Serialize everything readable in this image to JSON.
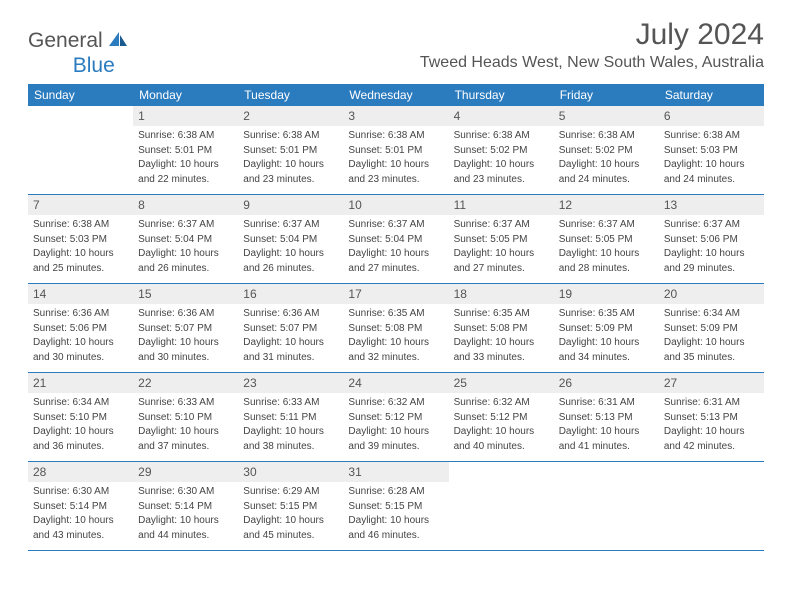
{
  "logo": {
    "text1": "General",
    "text2": "Blue"
  },
  "title": "July 2024",
  "location": "Tweed Heads West, New South Wales, Australia",
  "colors": {
    "header_bg": "#2b7bbf",
    "header_text": "#ffffff",
    "daynum_bg": "#eeeeee",
    "text": "#555555",
    "info_text": "#444444",
    "rule": "#2b7bbf"
  },
  "typography": {
    "title_fontsize": 30,
    "location_fontsize": 16,
    "dayheader_fontsize": 12,
    "daynum_fontsize": 12,
    "info_fontsize": 10
  },
  "dayNames": [
    "Sunday",
    "Monday",
    "Tuesday",
    "Wednesday",
    "Thursday",
    "Friday",
    "Saturday"
  ],
  "weeks": [
    [
      null,
      {
        "n": "1",
        "sr": "Sunrise: 6:38 AM",
        "ss": "Sunset: 5:01 PM",
        "d1": "Daylight: 10 hours",
        "d2": "and 22 minutes."
      },
      {
        "n": "2",
        "sr": "Sunrise: 6:38 AM",
        "ss": "Sunset: 5:01 PM",
        "d1": "Daylight: 10 hours",
        "d2": "and 23 minutes."
      },
      {
        "n": "3",
        "sr": "Sunrise: 6:38 AM",
        "ss": "Sunset: 5:01 PM",
        "d1": "Daylight: 10 hours",
        "d2": "and 23 minutes."
      },
      {
        "n": "4",
        "sr": "Sunrise: 6:38 AM",
        "ss": "Sunset: 5:02 PM",
        "d1": "Daylight: 10 hours",
        "d2": "and 23 minutes."
      },
      {
        "n": "5",
        "sr": "Sunrise: 6:38 AM",
        "ss": "Sunset: 5:02 PM",
        "d1": "Daylight: 10 hours",
        "d2": "and 24 minutes."
      },
      {
        "n": "6",
        "sr": "Sunrise: 6:38 AM",
        "ss": "Sunset: 5:03 PM",
        "d1": "Daylight: 10 hours",
        "d2": "and 24 minutes."
      }
    ],
    [
      {
        "n": "7",
        "sr": "Sunrise: 6:38 AM",
        "ss": "Sunset: 5:03 PM",
        "d1": "Daylight: 10 hours",
        "d2": "and 25 minutes."
      },
      {
        "n": "8",
        "sr": "Sunrise: 6:37 AM",
        "ss": "Sunset: 5:04 PM",
        "d1": "Daylight: 10 hours",
        "d2": "and 26 minutes."
      },
      {
        "n": "9",
        "sr": "Sunrise: 6:37 AM",
        "ss": "Sunset: 5:04 PM",
        "d1": "Daylight: 10 hours",
        "d2": "and 26 minutes."
      },
      {
        "n": "10",
        "sr": "Sunrise: 6:37 AM",
        "ss": "Sunset: 5:04 PM",
        "d1": "Daylight: 10 hours",
        "d2": "and 27 minutes."
      },
      {
        "n": "11",
        "sr": "Sunrise: 6:37 AM",
        "ss": "Sunset: 5:05 PM",
        "d1": "Daylight: 10 hours",
        "d2": "and 27 minutes."
      },
      {
        "n": "12",
        "sr": "Sunrise: 6:37 AM",
        "ss": "Sunset: 5:05 PM",
        "d1": "Daylight: 10 hours",
        "d2": "and 28 minutes."
      },
      {
        "n": "13",
        "sr": "Sunrise: 6:37 AM",
        "ss": "Sunset: 5:06 PM",
        "d1": "Daylight: 10 hours",
        "d2": "and 29 minutes."
      }
    ],
    [
      {
        "n": "14",
        "sr": "Sunrise: 6:36 AM",
        "ss": "Sunset: 5:06 PM",
        "d1": "Daylight: 10 hours",
        "d2": "and 30 minutes."
      },
      {
        "n": "15",
        "sr": "Sunrise: 6:36 AM",
        "ss": "Sunset: 5:07 PM",
        "d1": "Daylight: 10 hours",
        "d2": "and 30 minutes."
      },
      {
        "n": "16",
        "sr": "Sunrise: 6:36 AM",
        "ss": "Sunset: 5:07 PM",
        "d1": "Daylight: 10 hours",
        "d2": "and 31 minutes."
      },
      {
        "n": "17",
        "sr": "Sunrise: 6:35 AM",
        "ss": "Sunset: 5:08 PM",
        "d1": "Daylight: 10 hours",
        "d2": "and 32 minutes."
      },
      {
        "n": "18",
        "sr": "Sunrise: 6:35 AM",
        "ss": "Sunset: 5:08 PM",
        "d1": "Daylight: 10 hours",
        "d2": "and 33 minutes."
      },
      {
        "n": "19",
        "sr": "Sunrise: 6:35 AM",
        "ss": "Sunset: 5:09 PM",
        "d1": "Daylight: 10 hours",
        "d2": "and 34 minutes."
      },
      {
        "n": "20",
        "sr": "Sunrise: 6:34 AM",
        "ss": "Sunset: 5:09 PM",
        "d1": "Daylight: 10 hours",
        "d2": "and 35 minutes."
      }
    ],
    [
      {
        "n": "21",
        "sr": "Sunrise: 6:34 AM",
        "ss": "Sunset: 5:10 PM",
        "d1": "Daylight: 10 hours",
        "d2": "and 36 minutes."
      },
      {
        "n": "22",
        "sr": "Sunrise: 6:33 AM",
        "ss": "Sunset: 5:10 PM",
        "d1": "Daylight: 10 hours",
        "d2": "and 37 minutes."
      },
      {
        "n": "23",
        "sr": "Sunrise: 6:33 AM",
        "ss": "Sunset: 5:11 PM",
        "d1": "Daylight: 10 hours",
        "d2": "and 38 minutes."
      },
      {
        "n": "24",
        "sr": "Sunrise: 6:32 AM",
        "ss": "Sunset: 5:12 PM",
        "d1": "Daylight: 10 hours",
        "d2": "and 39 minutes."
      },
      {
        "n": "25",
        "sr": "Sunrise: 6:32 AM",
        "ss": "Sunset: 5:12 PM",
        "d1": "Daylight: 10 hours",
        "d2": "and 40 minutes."
      },
      {
        "n": "26",
        "sr": "Sunrise: 6:31 AM",
        "ss": "Sunset: 5:13 PM",
        "d1": "Daylight: 10 hours",
        "d2": "and 41 minutes."
      },
      {
        "n": "27",
        "sr": "Sunrise: 6:31 AM",
        "ss": "Sunset: 5:13 PM",
        "d1": "Daylight: 10 hours",
        "d2": "and 42 minutes."
      }
    ],
    [
      {
        "n": "28",
        "sr": "Sunrise: 6:30 AM",
        "ss": "Sunset: 5:14 PM",
        "d1": "Daylight: 10 hours",
        "d2": "and 43 minutes."
      },
      {
        "n": "29",
        "sr": "Sunrise: 6:30 AM",
        "ss": "Sunset: 5:14 PM",
        "d1": "Daylight: 10 hours",
        "d2": "and 44 minutes."
      },
      {
        "n": "30",
        "sr": "Sunrise: 6:29 AM",
        "ss": "Sunset: 5:15 PM",
        "d1": "Daylight: 10 hours",
        "d2": "and 45 minutes."
      },
      {
        "n": "31",
        "sr": "Sunrise: 6:28 AM",
        "ss": "Sunset: 5:15 PM",
        "d1": "Daylight: 10 hours",
        "d2": "and 46 minutes."
      },
      null,
      null,
      null
    ]
  ]
}
